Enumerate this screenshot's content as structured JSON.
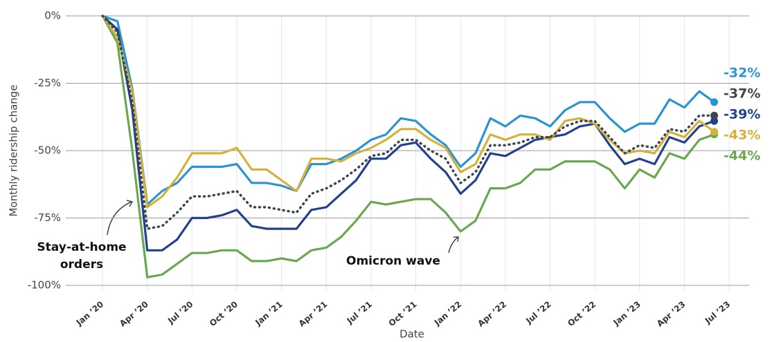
{
  "chart_data": {
    "type": "line",
    "ylabel": "Monthly ridership change",
    "xlabel": "Date",
    "categories": [
      "Jan ’20",
      null,
      null,
      "Apr ’20",
      null,
      null,
      "Jul ’20",
      null,
      null,
      "Oct ’20",
      null,
      null,
      "Jan ’21",
      null,
      null,
      "Apr ’21",
      null,
      null,
      "Jul ’21",
      null,
      null,
      "Oct ’21",
      null,
      null,
      "Jan ’22",
      null,
      null,
      "Apr ’22",
      null,
      null,
      "Jul ’22",
      null,
      null,
      "Oct ’22",
      null,
      null,
      "Jan ’23",
      null,
      null,
      "Apr ’23",
      null,
      null,
      "Jul ’23"
    ],
    "ylim": [
      -100,
      0
    ],
    "yticks": [
      {
        "value": 0,
        "label": "0%"
      },
      {
        "value": -25,
        "label": "-25%"
      },
      {
        "value": -50,
        "label": "-50%"
      },
      {
        "value": -75,
        "label": "-75%"
      },
      {
        "value": -100,
        "label": "-100%"
      }
    ],
    "grid": true,
    "series": [
      {
        "color": "#2b93d1",
        "style": "solid",
        "values": [
          0,
          -2,
          -27,
          -70,
          -65,
          -62,
          -56,
          -56,
          -56,
          -55,
          -62,
          -62,
          -63,
          -65,
          -55,
          -55,
          -53,
          -50,
          -46,
          -44,
          -38,
          -39,
          -44,
          -48,
          -56,
          -51,
          -38,
          -41,
          -37,
          -38,
          -41,
          -35,
          -32,
          -32,
          -38,
          -43,
          -40,
          -40,
          -31,
          -34,
          -28,
          -32,
          null
        ],
        "value_labels": [
          null,
          null,
          null,
          null,
          null,
          null,
          null,
          null,
          null,
          null,
          null,
          null,
          null,
          null,
          null,
          null,
          null,
          null,
          null,
          null,
          null,
          null,
          null,
          null,
          null,
          null,
          null,
          null,
          null,
          null,
          null,
          null,
          null,
          null,
          null,
          null,
          null,
          null,
          null,
          null,
          null,
          "-32%",
          null
        ]
      },
      {
        "color": "#23408e",
        "style": "solid",
        "values": [
          0,
          -5,
          -35,
          -87,
          -87,
          -83,
          -75,
          -75,
          -74,
          -72,
          -78,
          -79,
          -79,
          -79,
          -72,
          -71,
          -66,
          -61,
          -53,
          -53,
          -48,
          -47,
          -53,
          -58,
          -66,
          -61,
          -51,
          -52,
          -49,
          -46,
          -45,
          -44,
          -41,
          -40,
          -48,
          -55,
          -53,
          -55,
          -45,
          -47,
          -41,
          -39,
          null
        ],
        "value_labels": [
          null,
          null,
          null,
          null,
          null,
          null,
          null,
          null,
          null,
          null,
          null,
          null,
          null,
          null,
          null,
          null,
          null,
          null,
          null,
          null,
          null,
          null,
          null,
          null,
          null,
          null,
          null,
          null,
          null,
          null,
          null,
          null,
          null,
          null,
          null,
          null,
          null,
          null,
          null,
          null,
          null,
          "-39%",
          null
        ]
      },
      {
        "color": "#6aa84f",
        "style": "solid",
        "values": [
          0,
          -10,
          -50,
          -97,
          -96,
          -92,
          -88,
          -88,
          -87,
          -87,
          -91,
          -91,
          -90,
          -91,
          -87,
          -86,
          -82,
          -76,
          -69,
          -70,
          -69,
          -68,
          -68,
          -73,
          -80,
          -76,
          -64,
          -64,
          -62,
          -57,
          -57,
          -54,
          -54,
          -54,
          -57,
          -64,
          -57,
          -60,
          -51,
          -53,
          -46,
          -44,
          null
        ],
        "value_labels": [
          null,
          null,
          null,
          null,
          null,
          null,
          null,
          null,
          null,
          null,
          null,
          null,
          null,
          null,
          null,
          null,
          null,
          null,
          null,
          null,
          null,
          null,
          null,
          null,
          null,
          null,
          null,
          null,
          null,
          null,
          null,
          null,
          null,
          null,
          null,
          null,
          null,
          null,
          null,
          null,
          null,
          "-44%",
          null
        ]
      },
      {
        "color": "#d4b23a",
        "style": "solid",
        "values": [
          0,
          -8,
          -28,
          -71,
          -67,
          -60,
          -51,
          -51,
          -51,
          -49,
          -57,
          -57,
          -61,
          -65,
          -53,
          -53,
          -54,
          -51,
          -49,
          -46,
          -42,
          -42,
          -46,
          -49,
          -58,
          -55,
          -44,
          -46,
          -44,
          -44,
          -46,
          -39,
          -38,
          -40,
          -46,
          -51,
          -50,
          -51,
          -43,
          -45,
          -39,
          -43,
          null
        ],
        "value_labels": [
          null,
          null,
          null,
          null,
          null,
          null,
          null,
          null,
          null,
          null,
          null,
          null,
          null,
          null,
          null,
          null,
          null,
          null,
          null,
          null,
          null,
          null,
          null,
          null,
          null,
          null,
          null,
          null,
          null,
          null,
          null,
          null,
          null,
          null,
          null,
          null,
          null,
          null,
          null,
          null,
          null,
          "-43%",
          null
        ]
      },
      {
        "color": "#3a4750",
        "style": "dotted",
        "values": [
          0,
          -6,
          -32,
          -79,
          -78,
          -73,
          -67,
          -67,
          -66,
          -65,
          -71,
          -71,
          -72,
          -73,
          -66,
          -64,
          -61,
          -57,
          -52,
          -51,
          -46,
          -46,
          -50,
          -53,
          -62,
          -58,
          -48,
          -48,
          -47,
          -45,
          -45,
          -41,
          -39,
          -39,
          -45,
          -51,
          -48,
          -49,
          -42,
          -43,
          -37,
          -37,
          null
        ],
        "value_labels": [
          null,
          null,
          null,
          null,
          null,
          null,
          null,
          null,
          null,
          null,
          null,
          null,
          null,
          null,
          null,
          null,
          null,
          null,
          null,
          null,
          null,
          null,
          null,
          null,
          null,
          null,
          null,
          null,
          null,
          null,
          null,
          null,
          null,
          null,
          null,
          null,
          null,
          null,
          null,
          null,
          null,
          "-37%",
          null
        ]
      }
    ],
    "annotations": [
      {
        "lines": [
          "Stay-at-home",
          "orders"
        ]
      },
      {
        "lines": [
          "Omicron wave"
        ]
      }
    ]
  }
}
